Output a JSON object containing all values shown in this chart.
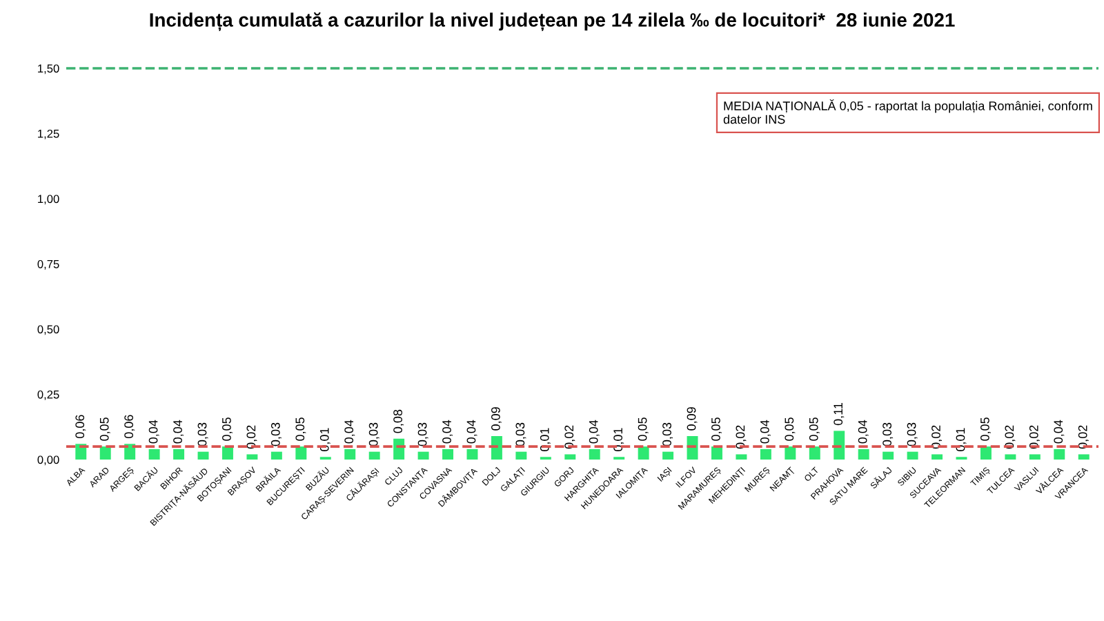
{
  "chart_data": {
    "type": "bar",
    "title": "Incidența cumulată a cazurilor la nivel județean pe 14 zilela ‰ de locuitori*  28 iunie 2021",
    "categories": [
      "ALBA",
      "ARAD",
      "ARGEȘ",
      "BACĂU",
      "BIHOR",
      "BISTRIȚA-NĂSĂUD",
      "BOTOȘANI",
      "BRAȘOV",
      "BRĂILA",
      "BUCUREȘTI",
      "BUZĂU",
      "CARAȘ-SEVERIN",
      "CĂLĂRAȘI",
      "CLUJ",
      "CONSTANȚA",
      "COVASNA",
      "DÂMBOVIȚA",
      "DOLJ",
      "GALAȚI",
      "GIURGIU",
      "GORJ",
      "HARGHITA",
      "HUNEDOARA",
      "IALOMIȚA",
      "IAȘI",
      "ILFOV",
      "MARAMUREȘ",
      "MEHEDINȚI",
      "MUREȘ",
      "NEAMȚ",
      "OLT",
      "PRAHOVA",
      "SATU MARE",
      "SĂLAJ",
      "SIBIU",
      "SUCEAVA",
      "TELEORMAN",
      "TIMIȘ",
      "TULCEA",
      "VASLUI",
      "VÂLCEA",
      "VRANCEA"
    ],
    "values": [
      0.06,
      0.05,
      0.06,
      0.04,
      0.04,
      0.03,
      0.05,
      0.02,
      0.03,
      0.05,
      0.01,
      0.04,
      0.03,
      0.08,
      0.03,
      0.04,
      0.04,
      0.09,
      0.03,
      0.01,
      0.02,
      0.04,
      0.01,
      0.05,
      0.03,
      0.09,
      0.05,
      0.02,
      0.04,
      0.05,
      0.05,
      0.11,
      0.04,
      0.03,
      0.03,
      0.02,
      0.01,
      0.05,
      0.02,
      0.02,
      0.04,
      0.02
    ],
    "value_labels": [
      "0,06",
      "0,05",
      "0,06",
      "0,04",
      "0,04",
      "0,03",
      "0,05",
      "0,02",
      "0,03",
      "0,05",
      "0,01",
      "0,04",
      "0,03",
      "0,08",
      "0,03",
      "0,04",
      "0,04",
      "0,09",
      "0,03",
      "0,01",
      "0,02",
      "0,04",
      "0,01",
      "0,05",
      "0,03",
      "0,09",
      "0,05",
      "0,02",
      "0,04",
      "0,05",
      "0,05",
      "0,11",
      "0,04",
      "0,03",
      "0,03",
      "0,02",
      "0,01",
      "0,05",
      "0,02",
      "0,02",
      "0,04",
      "0,02"
    ],
    "color": "#2ee872",
    "ylim": [
      0,
      1.5
    ],
    "yticks": [
      {
        "value": 0,
        "label": "0,00"
      },
      {
        "value": 0.25,
        "label": "0,25"
      },
      {
        "value": 0.5,
        "label": "0,50"
      },
      {
        "value": 0.75,
        "label": "0,75"
      },
      {
        "value": 1.0,
        "label": "1,00"
      },
      {
        "value": 1.25,
        "label": "1,25"
      },
      {
        "value": 1.5,
        "label": "1,50"
      }
    ],
    "ref_lines": [
      {
        "axis": "y",
        "value": 0.05,
        "color": "#d9534f",
        "line_style": "dashed"
      },
      {
        "axis": "y",
        "value": 1.5,
        "color": "#3cb371",
        "line_style": "dashed"
      }
    ],
    "annotations": [
      "MEDIA NAȚIONALĂ 0,05 - raportat la populația României, conform datelor INS"
    ],
    "grid": false
  }
}
